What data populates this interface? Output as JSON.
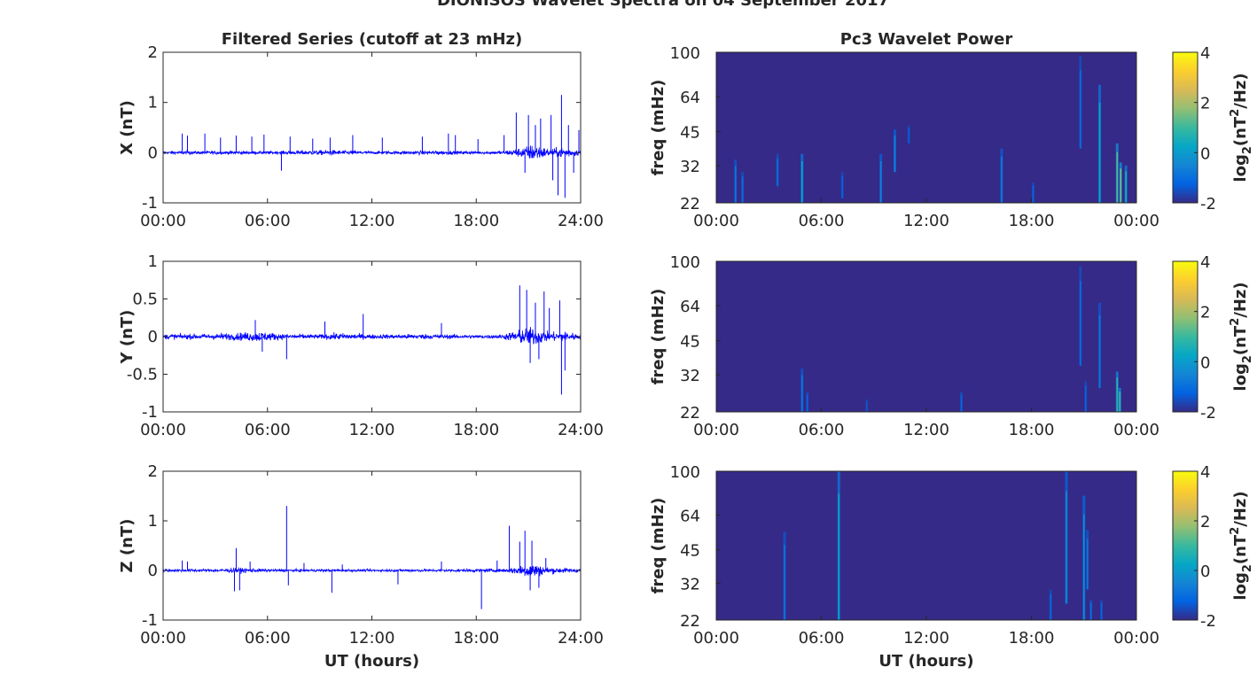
{
  "figure_title": "DIONISOS Wavelet Spectra on 04 September 2017",
  "colors": {
    "series_line": "#0000ff",
    "spectrogram_background": "#352a87",
    "axis": "#262626",
    "colormap": [
      "#352a87",
      "#0363e1",
      "#1485d4",
      "#06a7c6",
      "#38b99e",
      "#92bf73",
      "#d9ba56",
      "#fcce2e",
      "#f9fb0e"
    ]
  },
  "chart_data": [
    {
      "id": "x-series",
      "type": "line",
      "title": "Filtered Series (cutoff at 23 mHz)",
      "xlabel": "",
      "ylabel": "X (nT)",
      "xlim": [
        0,
        24
      ],
      "ylim": [
        -1,
        2
      ],
      "xticks": [
        "00:00",
        "06:00",
        "12:00",
        "18:00",
        "24:00"
      ],
      "yticks": [
        "-1",
        "0",
        "1",
        "2"
      ],
      "baseline_amplitude": 0.05,
      "envelope": [
        [
          0,
          0.05
        ],
        [
          3,
          0.06
        ],
        [
          6,
          0.05
        ],
        [
          9.5,
          0.09
        ],
        [
          12,
          0.05
        ],
        [
          15,
          0.07
        ],
        [
          18,
          0.05
        ],
        [
          19.5,
          0.06
        ],
        [
          20.4,
          0.14
        ],
        [
          21.3,
          0.3
        ],
        [
          22.2,
          0.12
        ],
        [
          23,
          0.2
        ],
        [
          24,
          0.08
        ]
      ],
      "spikes": [
        [
          1.1,
          0.38
        ],
        [
          1.4,
          0.34
        ],
        [
          2.4,
          0.38
        ],
        [
          3.3,
          0.3
        ],
        [
          4.2,
          0.34
        ],
        [
          5.1,
          0.32
        ],
        [
          5.8,
          0.36
        ],
        [
          6.8,
          -0.36
        ],
        [
          7.3,
          0.32
        ],
        [
          8.6,
          0.28
        ],
        [
          9.6,
          0.3
        ],
        [
          10.9,
          0.35
        ],
        [
          12.6,
          0.3
        ],
        [
          14.9,
          0.32
        ],
        [
          16.4,
          0.38
        ],
        [
          16.8,
          0.35
        ],
        [
          18.1,
          0.27
        ],
        [
          19.6,
          0.35
        ],
        [
          20.3,
          0.8
        ],
        [
          20.8,
          -0.4
        ],
        [
          21.0,
          0.75
        ],
        [
          21.4,
          0.55
        ],
        [
          21.7,
          0.68
        ],
        [
          22.3,
          0.75
        ],
        [
          22.4,
          -0.55
        ],
        [
          22.7,
          -0.85
        ],
        [
          22.9,
          1.15
        ],
        [
          23.1,
          -0.9
        ],
        [
          23.3,
          0.55
        ],
        [
          23.6,
          -0.4
        ],
        [
          23.9,
          0.45
        ]
      ]
    },
    {
      "id": "x-wavelet",
      "type": "heatmap",
      "title": "Pc3 Wavelet Power",
      "xlabel": "",
      "ylabel": "freq (mHz)",
      "xlim": [
        0,
        24
      ],
      "ylim": [
        22,
        100
      ],
      "yscale": "log",
      "xticks": [
        "00:00",
        "06:00",
        "12:00",
        "18:00",
        "00:00"
      ],
      "yticks": [
        "100",
        "64",
        "45",
        "32",
        "22"
      ],
      "colorbar_label": "log2(nT²/Hz)",
      "clim": [
        -2,
        4
      ],
      "colorbar_ticks": [
        "4",
        "2",
        "0",
        "-2"
      ],
      "background_power": -2,
      "streaks": [
        [
          1.1,
          22,
          34,
          -0.8
        ],
        [
          1.5,
          22,
          30,
          -1.0
        ],
        [
          3.5,
          26,
          36,
          -1.0
        ],
        [
          4.9,
          22,
          36,
          0.2
        ],
        [
          7.2,
          23,
          30,
          -1.2
        ],
        [
          9.4,
          22,
          36,
          -0.6
        ],
        [
          10.2,
          30,
          46,
          -0.6
        ],
        [
          11.0,
          40,
          48,
          -1.3
        ],
        [
          16.3,
          22,
          38,
          -0.7
        ],
        [
          18.1,
          22,
          27,
          -1.2
        ],
        [
          20.8,
          38,
          96,
          -1.0
        ],
        [
          21.9,
          22,
          72,
          0.2
        ],
        [
          22.9,
          22,
          40,
          1.2
        ],
        [
          23.1,
          22,
          33,
          1.5
        ],
        [
          23.4,
          22,
          32,
          0.5
        ]
      ]
    },
    {
      "id": "y-series",
      "type": "line",
      "title": "",
      "xlabel": "",
      "ylabel": "Y (nT)",
      "xlim": [
        0,
        24
      ],
      "ylim": [
        -1,
        1
      ],
      "xticks": [
        "00:00",
        "06:00",
        "12:00",
        "18:00",
        "24:00"
      ],
      "yticks": [
        "-1",
        "-0.5",
        "0",
        "0.5",
        "1"
      ],
      "baseline_amplitude": 0.04,
      "envelope": [
        [
          0,
          0.06
        ],
        [
          2,
          0.06
        ],
        [
          4,
          0.08
        ],
        [
          5.5,
          0.12
        ],
        [
          7,
          0.06
        ],
        [
          9,
          0.05
        ],
        [
          10,
          0.08
        ],
        [
          12,
          0.05
        ],
        [
          15,
          0.06
        ],
        [
          18,
          0.04
        ],
        [
          19.5,
          0.05
        ],
        [
          20.3,
          0.14
        ],
        [
          21.2,
          0.22
        ],
        [
          22.2,
          0.1
        ],
        [
          23,
          0.12
        ],
        [
          24,
          0.06
        ]
      ],
      "spikes": [
        [
          5.3,
          0.22
        ],
        [
          5.7,
          -0.2
        ],
        [
          7.1,
          -0.3
        ],
        [
          9.3,
          0.2
        ],
        [
          11.5,
          0.3
        ],
        [
          16.0,
          0.18
        ],
        [
          20.5,
          0.68
        ],
        [
          20.9,
          0.62
        ],
        [
          21.1,
          -0.35
        ],
        [
          21.4,
          0.45
        ],
        [
          21.6,
          -0.3
        ],
        [
          21.9,
          0.6
        ],
        [
          22.2,
          0.38
        ],
        [
          22.8,
          0.48
        ],
        [
          22.9,
          -0.77
        ],
        [
          23.1,
          -0.45
        ]
      ]
    },
    {
      "id": "y-wavelet",
      "type": "heatmap",
      "title": "",
      "xlabel": "",
      "ylabel": "freq (mHz)",
      "xlim": [
        0,
        24
      ],
      "ylim": [
        22,
        100
      ],
      "yscale": "log",
      "xticks": [
        "00:00",
        "06:00",
        "12:00",
        "18:00",
        "00:00"
      ],
      "yticks": [
        "100",
        "64",
        "45",
        "32",
        "22"
      ],
      "colorbar_label": "log2(nT²/Hz)",
      "clim": [
        -2,
        4
      ],
      "colorbar_ticks": [
        "4",
        "2",
        "0",
        "-2"
      ],
      "background_power": -2,
      "streaks": [
        [
          4.9,
          22,
          34,
          -0.8
        ],
        [
          5.2,
          22,
          27,
          -1.2
        ],
        [
          8.6,
          22,
          25,
          -1.4
        ],
        [
          14.0,
          22,
          27,
          -1.2
        ],
        [
          20.8,
          35,
          95,
          -1.0
        ],
        [
          21.1,
          22,
          30,
          -1.2
        ],
        [
          21.9,
          28,
          66,
          -0.8
        ],
        [
          22.9,
          22,
          33,
          0.8
        ],
        [
          23.05,
          22,
          28,
          1.0
        ]
      ]
    },
    {
      "id": "z-series",
      "type": "line",
      "title": "",
      "xlabel": "UT (hours)",
      "ylabel": "Z (nT)",
      "xlim": [
        0,
        24
      ],
      "ylim": [
        -1,
        2
      ],
      "xticks": [
        "00:00",
        "06:00",
        "12:00",
        "18:00",
        "24:00"
      ],
      "yticks": [
        "-1",
        "0",
        "1",
        "2"
      ],
      "baseline_amplitude": 0.04,
      "envelope": [
        [
          0,
          0.05
        ],
        [
          3,
          0.05
        ],
        [
          4.3,
          0.09
        ],
        [
          6,
          0.05
        ],
        [
          12,
          0.04
        ],
        [
          18,
          0.05
        ],
        [
          19.8,
          0.06
        ],
        [
          20.5,
          0.18
        ],
        [
          21.2,
          0.28
        ],
        [
          22,
          0.12
        ],
        [
          24,
          0.06
        ]
      ],
      "spikes": [
        [
          1.1,
          0.2
        ],
        [
          1.4,
          0.18
        ],
        [
          4.1,
          -0.42
        ],
        [
          4.2,
          0.45
        ],
        [
          4.4,
          -0.4
        ],
        [
          5.0,
          0.18
        ],
        [
          7.1,
          1.3
        ],
        [
          7.2,
          -0.3
        ],
        [
          8.1,
          0.15
        ],
        [
          9.7,
          -0.45
        ],
        [
          10.3,
          0.12
        ],
        [
          13.5,
          -0.28
        ],
        [
          16.0,
          0.18
        ],
        [
          18.3,
          -0.78
        ],
        [
          19.2,
          0.2
        ],
        [
          19.9,
          0.9
        ],
        [
          20.5,
          0.58
        ],
        [
          20.8,
          0.8
        ],
        [
          21.1,
          -0.4
        ],
        [
          21.2,
          0.6
        ],
        [
          21.6,
          -0.35
        ],
        [
          22.0,
          0.25
        ]
      ]
    },
    {
      "id": "z-wavelet",
      "type": "heatmap",
      "title": "",
      "xlabel": "UT (hours)",
      "ylabel": "freq (mHz)",
      "xlim": [
        0,
        24
      ],
      "ylim": [
        22,
        100
      ],
      "yscale": "log",
      "xticks": [
        "00:00",
        "06:00",
        "12:00",
        "18:00",
        "00:00"
      ],
      "yticks": [
        "100",
        "64",
        "45",
        "32",
        "22"
      ],
      "colorbar_label": "log2(nT²/Hz)",
      "clim": [
        -2,
        4
      ],
      "colorbar_ticks": [
        "4",
        "2",
        "0",
        "-2"
      ],
      "background_power": -2,
      "streaks": [
        [
          3.9,
          22,
          54,
          -0.8
        ],
        [
          7.0,
          22,
          100,
          0.2
        ],
        [
          19.1,
          22,
          30,
          -1.1
        ],
        [
          20.0,
          26,
          100,
          -0.4
        ],
        [
          21.0,
          22,
          78,
          -0.3
        ],
        [
          21.2,
          30,
          55,
          -0.8
        ],
        [
          21.4,
          22,
          27,
          -1.0
        ],
        [
          22.0,
          22,
          27,
          -1.2
        ]
      ]
    }
  ]
}
